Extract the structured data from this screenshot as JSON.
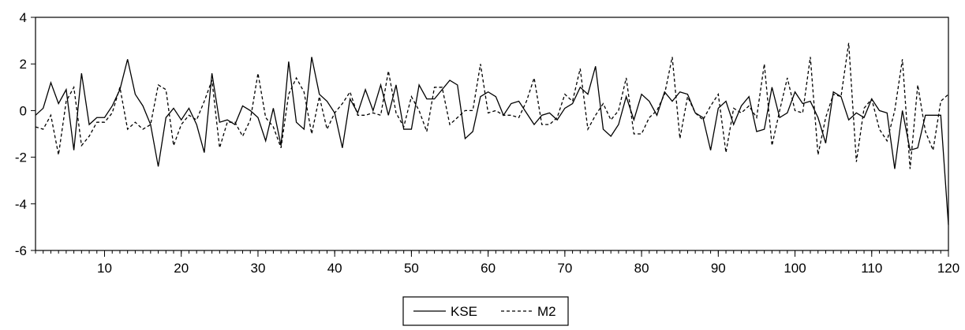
{
  "chart_data": {
    "type": "line",
    "title": "",
    "xlabel": "",
    "ylabel": "",
    "xlim": [
      1,
      120
    ],
    "ylim": [
      -6,
      4
    ],
    "x_ticks": [
      10,
      20,
      30,
      40,
      50,
      60,
      70,
      80,
      90,
      100,
      110,
      120
    ],
    "y_ticks": [
      4,
      2,
      0,
      -2,
      -4,
      -6
    ],
    "x_tick_labels": [
      "10",
      "20",
      "30",
      "40",
      "50",
      "60",
      "70",
      "80",
      "90",
      "100",
      "110",
      "120"
    ],
    "y_tick_labels": [
      "4",
      "2",
      "0",
      "-2",
      "-4",
      "-6"
    ],
    "grid": false,
    "legend_position": "bottom-center",
    "x": [
      1,
      2,
      3,
      4,
      5,
      6,
      7,
      8,
      9,
      10,
      11,
      12,
      13,
      14,
      15,
      16,
      17,
      18,
      19,
      20,
      21,
      22,
      23,
      24,
      25,
      26,
      27,
      28,
      29,
      30,
      31,
      32,
      33,
      34,
      35,
      36,
      37,
      38,
      39,
      40,
      41,
      42,
      43,
      44,
      45,
      46,
      47,
      48,
      49,
      50,
      51,
      52,
      53,
      54,
      55,
      56,
      57,
      58,
      59,
      60,
      61,
      62,
      63,
      64,
      65,
      66,
      67,
      68,
      69,
      70,
      71,
      72,
      73,
      74,
      75,
      76,
      77,
      78,
      79,
      80,
      81,
      82,
      83,
      84,
      85,
      86,
      87,
      88,
      89,
      90,
      91,
      92,
      93,
      94,
      95,
      96,
      97,
      98,
      99,
      100,
      101,
      102,
      103,
      104,
      105,
      106,
      107,
      108,
      109,
      110,
      111,
      112,
      113,
      114,
      115,
      116,
      117,
      118,
      119,
      120
    ],
    "series": [
      {
        "name": "KSE",
        "style": "solid",
        "color": "#000000",
        "values": [
          -0.2,
          0.1,
          1.2,
          0.3,
          0.9,
          -1.7,
          1.6,
          -0.6,
          -0.3,
          -0.3,
          0.2,
          0.9,
          2.2,
          0.7,
          0.2,
          -0.6,
          -2.4,
          -0.3,
          0.1,
          -0.4,
          0.1,
          -0.6,
          -1.8,
          1.6,
          -0.5,
          -0.4,
          -0.6,
          0.2,
          0.0,
          -0.3,
          -1.3,
          0.1,
          -1.5,
          2.1,
          -0.5,
          -0.8,
          2.3,
          0.7,
          0.4,
          -0.1,
          -1.6,
          0.5,
          -0.1,
          0.9,
          0.0,
          1.1,
          -0.2,
          1.1,
          -0.8,
          -0.8,
          1.1,
          0.5,
          0.5,
          0.9,
          1.3,
          1.1,
          -1.2,
          -0.9,
          0.6,
          0.8,
          0.6,
          -0.2,
          0.3,
          0.4,
          -0.1,
          -0.6,
          -0.2,
          -0.1,
          -0.4,
          0.1,
          0.3,
          1.0,
          0.7,
          1.9,
          -0.8,
          -1.1,
          -0.6,
          0.6,
          -0.4,
          0.7,
          0.4,
          -0.2,
          0.8,
          0.4,
          0.8,
          0.7,
          -0.1,
          -0.3,
          -1.7,
          0.1,
          0.4,
          -0.6,
          0.2,
          0.6,
          -0.9,
          -0.8,
          1.0,
          -0.3,
          -0.1,
          0.8,
          0.3,
          0.4,
          -0.3,
          -1.4,
          0.8,
          0.6,
          -0.4,
          -0.1,
          -0.3,
          0.5,
          0.0,
          -0.1,
          -2.5,
          0.0,
          -1.7,
          -1.6,
          -0.2,
          -0.2,
          -0.2,
          -4.9
        ]
      },
      {
        "name": "M2",
        "style": "dashed",
        "color": "#000000",
        "values": [
          -0.7,
          -0.8,
          -0.2,
          -1.9,
          0.4,
          1.0,
          -1.5,
          -1.1,
          -0.5,
          -0.5,
          -0.1,
          1.0,
          -0.8,
          -0.5,
          -0.8,
          -0.6,
          1.1,
          0.9,
          -1.5,
          -0.6,
          -0.2,
          -0.4,
          0.4,
          1.3,
          -1.6,
          -0.5,
          -0.5,
          -1.1,
          -0.4,
          1.6,
          -0.3,
          -0.7,
          -1.6,
          0.7,
          1.4,
          0.8,
          -1.0,
          0.6,
          -0.8,
          -0.1,
          0.3,
          0.8,
          -0.2,
          -0.2,
          -0.1,
          -0.2,
          1.7,
          -0.1,
          -0.7,
          0.6,
          0.0,
          -0.9,
          1.0,
          1.0,
          -0.6,
          -0.3,
          0.0,
          0.0,
          2.0,
          -0.1,
          0.0,
          -0.2,
          -0.2,
          -0.3,
          0.4,
          1.4,
          -0.6,
          -0.6,
          -0.3,
          0.7,
          0.4,
          1.8,
          -0.8,
          -0.2,
          0.3,
          -0.4,
          0.0,
          1.4,
          -1.0,
          -1.0,
          -0.3,
          0.0,
          0.7,
          2.3,
          -1.2,
          0.6,
          -0.1,
          -0.4,
          0.2,
          0.7,
          -1.8,
          0.1,
          -0.1,
          0.2,
          -0.3,
          2.0,
          -1.5,
          0.0,
          1.4,
          0.0,
          -0.1,
          2.3,
          -1.9,
          -0.3,
          0.7,
          0.6,
          2.9,
          -2.2,
          0.1,
          0.5,
          -0.8,
          -1.3,
          0.0,
          2.2,
          -2.5,
          1.1,
          -0.9,
          -1.7,
          0.4,
          0.7
        ]
      }
    ]
  }
}
